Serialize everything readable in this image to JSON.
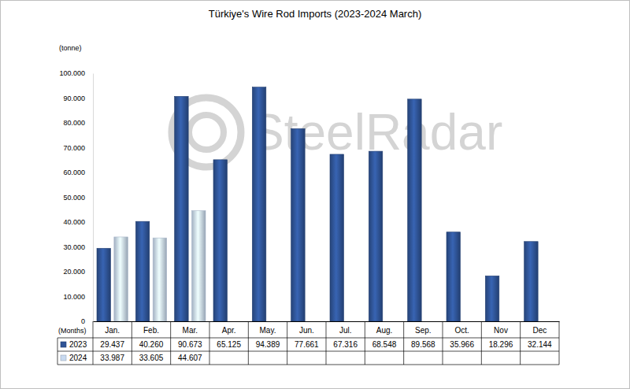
{
  "chart_data": {
    "type": "bar",
    "title": "Türkiye's Wire Rod Imports (2023-2024 March)",
    "y_label": "(tonne)",
    "x_label": "(Months)",
    "annotations": [
      "SteelRadar"
    ],
    "categories": [
      "Jan.",
      "Feb.",
      "Mar.",
      "Apr.",
      "May.",
      "Jun.",
      "Jul.",
      "Aug.",
      "Sep.",
      "Oct.",
      "Nov",
      "Dec"
    ],
    "series": [
      {
        "name": "2023",
        "color": "#2f5496",
        "values": [
          29437,
          40260,
          90673,
          65125,
          94389,
          77661,
          67316,
          68548,
          89568,
          35966,
          18296,
          32144
        ],
        "value_labels": [
          "29.437",
          "40.260",
          "90.673",
          "65.125",
          "94.389",
          "77.661",
          "67.316",
          "68.548",
          "89.568",
          "35.966",
          "18.296",
          "32.144"
        ]
      },
      {
        "name": "2024",
        "color": "#c9daf0",
        "values": [
          33987,
          33605,
          44607,
          null,
          null,
          null,
          null,
          null,
          null,
          null,
          null,
          null
        ],
        "value_labels": [
          "33.987",
          "33.605",
          "44.607",
          null,
          null,
          null,
          null,
          null,
          null,
          null,
          null,
          null
        ]
      }
    ],
    "ylim": [
      0,
      100000
    ],
    "yticks": [
      0,
      {
        "value": 10000,
        "label": "10.000"
      },
      {
        "value": 20000,
        "label": "20.000"
      },
      {
        "value": 30000,
        "label": "30.000"
      },
      {
        "value": 40000,
        "label": "40.000"
      },
      {
        "value": 50000,
        "label": "50.000"
      },
      {
        "value": 60000,
        "label": "60.000"
      },
      {
        "value": 70000,
        "label": "70.000"
      },
      {
        "value": 80000,
        "label": "80.000"
      },
      {
        "value": 90000,
        "label": "90.000"
      },
      {
        "value": 100000,
        "label": "100.000"
      }
    ],
    "grid": false
  }
}
